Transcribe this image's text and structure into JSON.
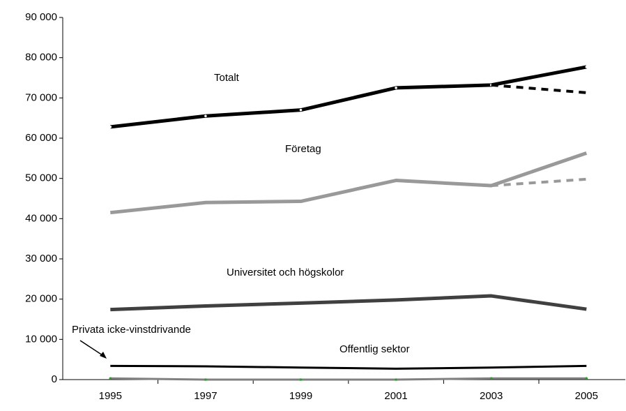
{
  "chart_data": {
    "type": "line",
    "categories": [
      "1995",
      "1997",
      "1999",
      "2001",
      "2003",
      "2005"
    ],
    "series": [
      {
        "name": "Totalt",
        "color": "#000000",
        "values": [
          62800,
          65500,
          67000,
          72500,
          73200,
          77700
        ]
      },
      {
        "color": "#000000",
        "dashed": true,
        "values": [
          null,
          null,
          null,
          null,
          73200,
          71300
        ]
      },
      {
        "name": "Företag",
        "color": "#999999",
        "values": [
          41500,
          44000,
          44300,
          49500,
          48200,
          56300
        ]
      },
      {
        "color": "#999999",
        "dashed": true,
        "values": [
          null,
          null,
          null,
          null,
          48200,
          49800
        ]
      },
      {
        "name": "Universitet och högskolor",
        "color": "#404040",
        "values": [
          17400,
          18300,
          19000,
          19800,
          20800,
          17500
        ]
      },
      {
        "name": "Offentlig sektor",
        "color": "#000000",
        "values": [
          3400,
          3300,
          3000,
          2700,
          3000,
          3400
        ]
      },
      {
        "name": "Privata icke-vinstdrivande",
        "color": "#808080",
        "values": [
          300,
          0,
          0,
          0,
          300,
          300
        ]
      }
    ],
    "ylim": [
      0,
      90000
    ],
    "yticks": [
      0,
      {
        "value": 10000,
        "label": "10 000"
      },
      {
        "value": 20000,
        "label": "20 000"
      },
      {
        "value": 30000,
        "label": "30 000"
      },
      {
        "value": 40000,
        "label": "40 000"
      },
      {
        "value": 50000,
        "label": "50 000"
      },
      {
        "value": 60000,
        "label": "60 000"
      },
      {
        "value": 70000,
        "label": "70 000"
      },
      {
        "value": 80000,
        "label": "80 000"
      },
      {
        "value": 90000,
        "label": "90 000"
      }
    ],
    "grid": false
  }
}
